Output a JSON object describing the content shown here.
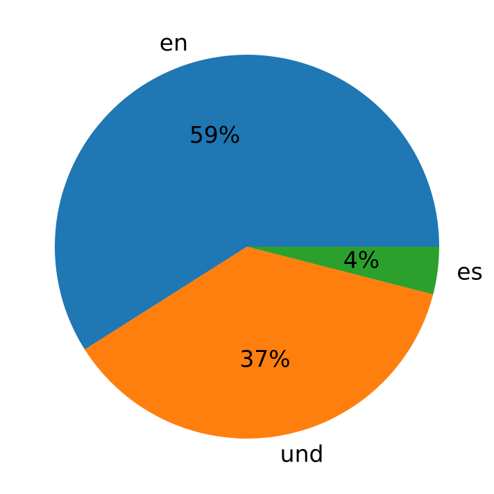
{
  "chart_data": {
    "type": "pie",
    "categories": [
      "en",
      "und",
      "es"
    ],
    "values": [
      59,
      37,
      4
    ],
    "value_labels": [
      "59%",
      "37%",
      "4%"
    ],
    "colors": [
      "#1f77b4",
      "#ff7f0e",
      "#2ca02c"
    ]
  }
}
